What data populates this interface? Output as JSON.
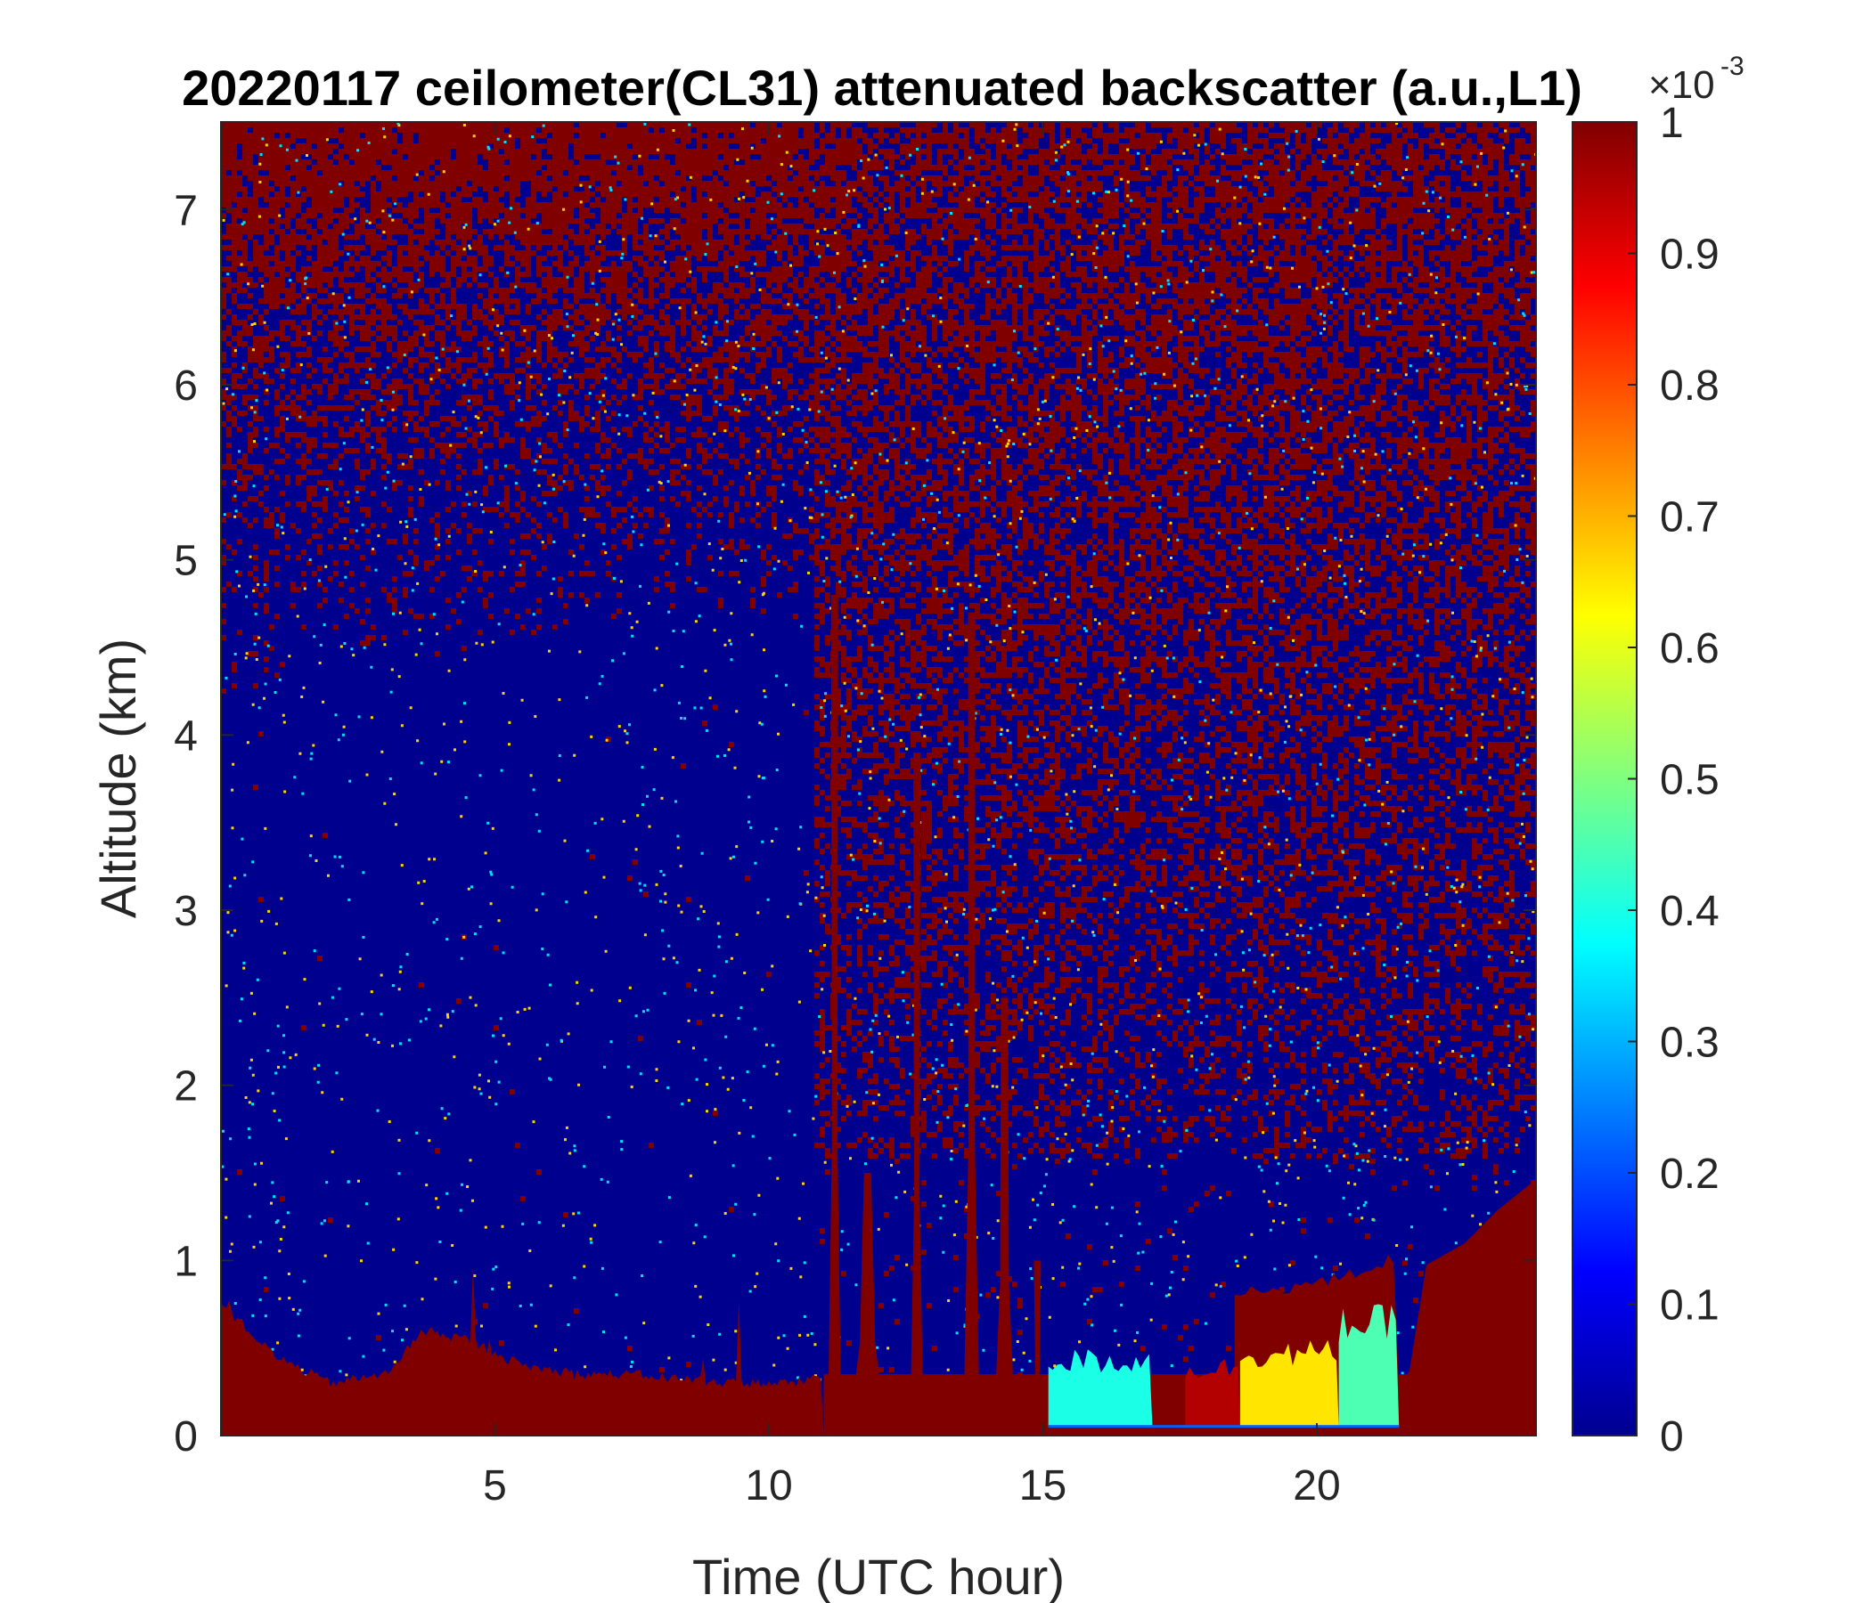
{
  "chart_data": {
    "type": "heatmap",
    "title": "20220117 ceilometer(CL31) attenuated backscatter (a.u.,L1)",
    "xlabel": "Time (UTC hour)",
    "ylabel": "Altitude (km)",
    "xlim": [
      0,
      24
    ],
    "ylim": [
      0,
      7.5
    ],
    "xticks": [
      5,
      10,
      15,
      20
    ],
    "yticks": [
      0,
      1,
      2,
      3,
      4,
      5,
      6,
      7
    ],
    "colorbar": {
      "colormap": "jet",
      "clim": [
        0,
        1
      ],
      "ticks": [
        0,
        0.1,
        0.2,
        0.3,
        0.4,
        0.5,
        0.6,
        0.7,
        0.8,
        0.9,
        1
      ],
      "ticklabels": [
        "0",
        "0.1",
        "0.2",
        "0.3",
        "0.4",
        "0.5",
        "0.6",
        "0.7",
        "0.8",
        "0.9",
        "1"
      ],
      "multiplier": "×10",
      "exponent": "-3"
    },
    "boundary_layer_top_km": [
      [
        0,
        0.75
      ],
      [
        0.5,
        0.6
      ],
      [
        1,
        0.45
      ],
      [
        2,
        0.3
      ],
      [
        3,
        0.35
      ],
      [
        3.7,
        0.6
      ],
      [
        4.5,
        0.55
      ],
      [
        5.5,
        0.4
      ],
      [
        6.5,
        0.35
      ],
      [
        7.5,
        0.35
      ],
      [
        8.5,
        0.32
      ],
      [
        9.5,
        0.3
      ],
      [
        10.5,
        0.3
      ],
      [
        11,
        0.35
      ]
    ],
    "clear_region_top_km": [
      [
        0,
        4.2
      ],
      [
        2,
        4.5
      ],
      [
        4,
        4.6
      ],
      [
        6,
        4.6
      ],
      [
        8,
        4.7
      ],
      [
        10,
        4.7
      ],
      [
        10.8,
        4.8
      ]
    ],
    "cloud_plumes": [
      {
        "x": 11.2,
        "w": 0.25,
        "top_km": 4.8
      },
      {
        "x": 11.8,
        "w": 0.7,
        "top_km": 1.5
      },
      {
        "x": 12.7,
        "w": 0.25,
        "top_km": 3.9
      },
      {
        "x": 13.7,
        "w": 0.3,
        "top_km": 4.7
      },
      {
        "x": 14.3,
        "w": 0.4,
        "top_km": 2.5
      },
      {
        "x": 14.9,
        "w": 0.2,
        "top_km": 1.0
      }
    ],
    "low_layers": [
      {
        "x0": 15.1,
        "x1": 17.0,
        "value": 0.4,
        "top_km": 0.5
      },
      {
        "x0": 17.6,
        "x1": 18.6,
        "value": 0.95,
        "top_km": 0.45
      },
      {
        "x0": 18.6,
        "x1": 20.4,
        "value": 0.65,
        "top_km": 0.55
      },
      {
        "x0": 20.4,
        "x1": 21.5,
        "value": 0.45,
        "top_km": 0.75
      }
    ],
    "evening_layer_top_km": [
      [
        18.5,
        0.8
      ],
      [
        19.5,
        0.85
      ],
      [
        20.5,
        0.9
      ],
      [
        21.3,
        1.0
      ],
      [
        22.0,
        0.95
      ],
      [
        22.7,
        1.1
      ],
      [
        23.3,
        1.3
      ],
      [
        24,
        1.45
      ]
    ]
  }
}
